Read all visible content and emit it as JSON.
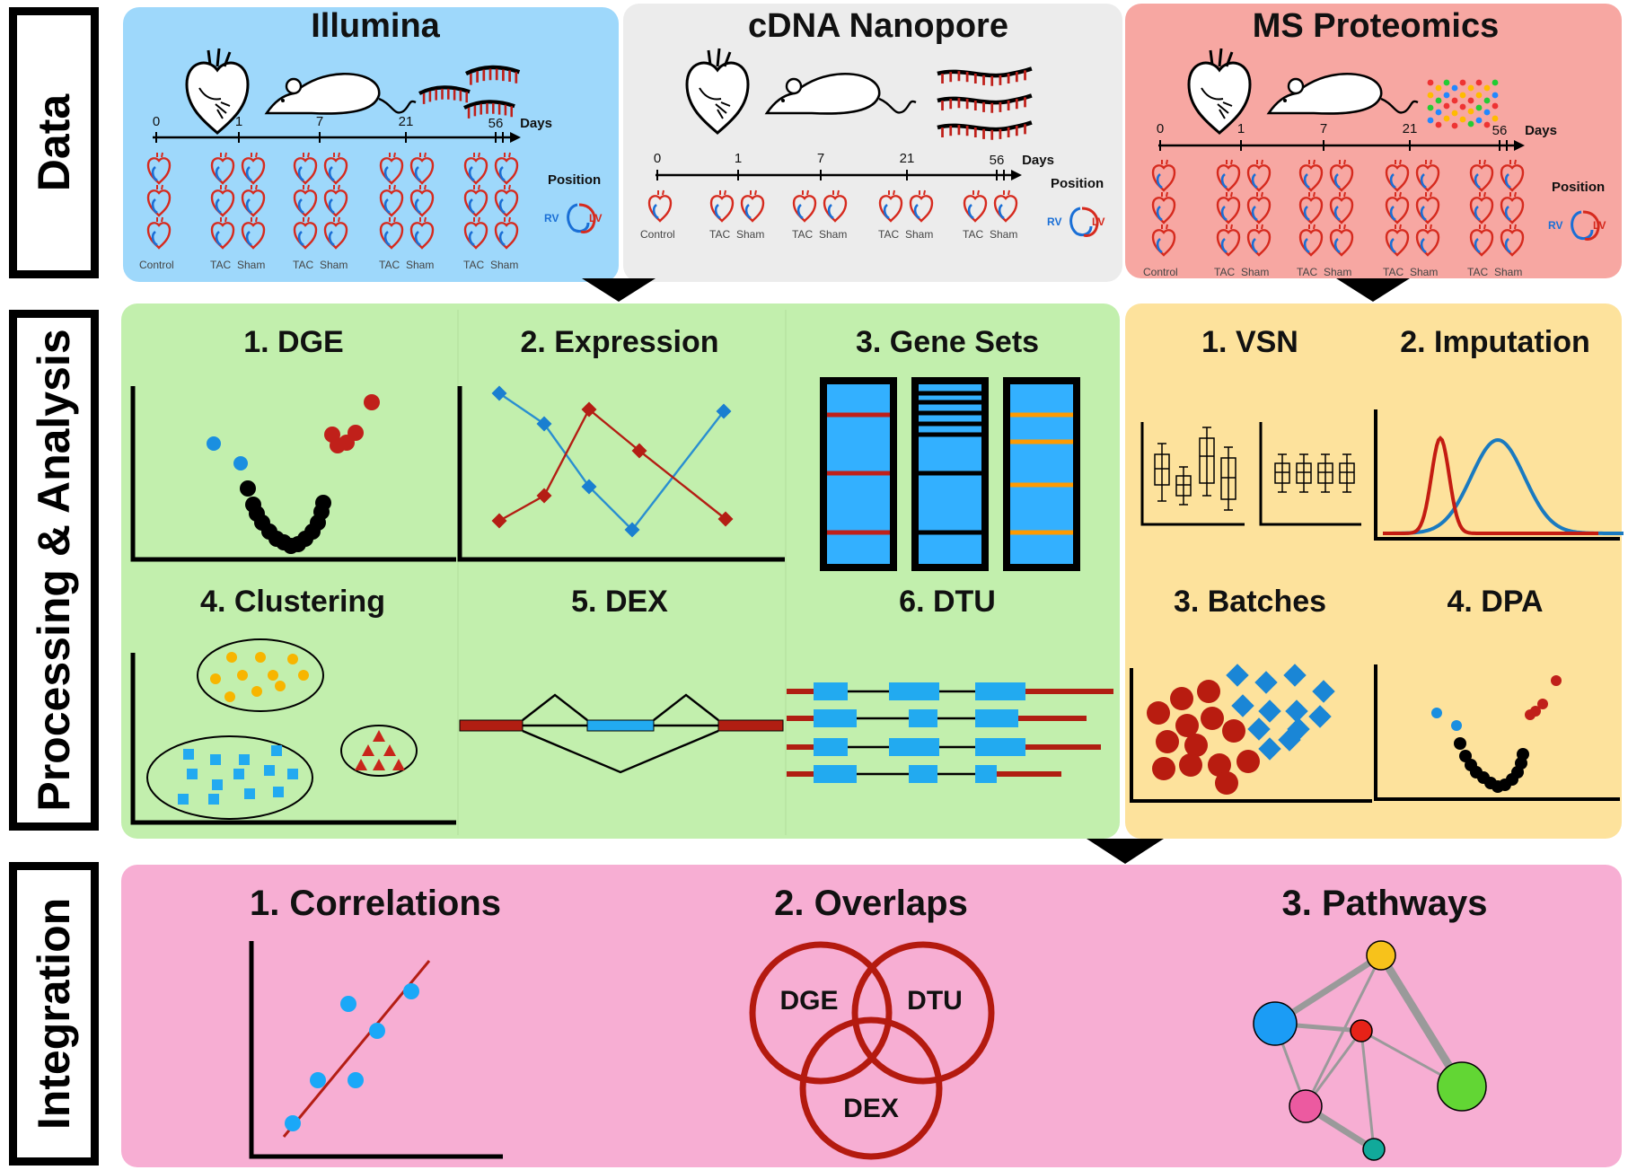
{
  "side_labels": [
    "Data",
    "Processing & Analysis",
    "Integration"
  ],
  "data_panels": [
    {
      "title": "Illumina",
      "color": "#9ed8fb"
    },
    {
      "title": "cDNA Nanopore",
      "color": "#ececec"
    },
    {
      "title": "MS Proteomics",
      "color": "#f7a7a2"
    }
  ],
  "timeline": {
    "ticks": [
      "0",
      "1",
      "7",
      "21",
      "56"
    ],
    "unit": "Days"
  },
  "position_label": "Position",
  "rv_label": "RV",
  "lv_label": "LV",
  "control_label": "Control",
  "tac_label": "TAC",
  "sham_label": "Sham",
  "transcript_panel": {
    "color": "#c2efad",
    "steps": [
      "1. DGE",
      "2. Expression",
      "3. Gene Sets",
      "4. Clustering",
      "5. DEX",
      "6. DTU"
    ]
  },
  "proteomics_panel": {
    "color": "#fde29c",
    "steps": [
      "1. VSN",
      "2. Imputation",
      "3. Batches",
      "4. DPA"
    ]
  },
  "integration_panel": {
    "color": "#f7aed3",
    "steps": [
      "1. Correlations",
      "2. Overlaps",
      "3. Pathways"
    ],
    "venn": [
      "DGE",
      "DTU",
      "DEX"
    ]
  }
}
